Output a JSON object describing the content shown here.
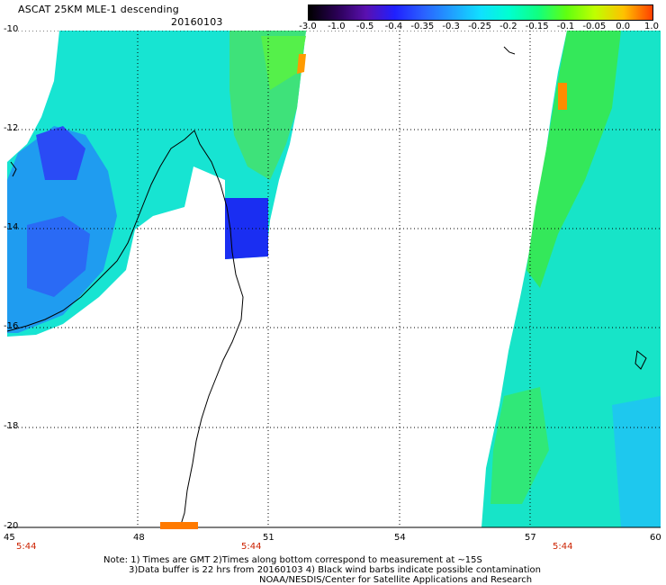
{
  "title": "ASCAT 25KM MLE-1 descending",
  "date": "20160103",
  "colorbar": {
    "labels": [
      "-3.0",
      "-1.0",
      "-0.5",
      "-0.4",
      "-0.35",
      "-0.3",
      "-0.25",
      "-0.2",
      "-0.15",
      "-0.1",
      "-0.05",
      "0.0",
      "1.0"
    ],
    "colors": [
      "#000000",
      "#2a0055",
      "#5a10b0",
      "#2020ff",
      "#2a60ff",
      "#20a0ff",
      "#10e0ff",
      "#00ffd0",
      "#10ff80",
      "#60ff10",
      "#c0ff00",
      "#ffc000",
      "#ff4000"
    ]
  },
  "lat_ticks": [
    "-10",
    "-12",
    "-14",
    "-16",
    "-18",
    "-20"
  ],
  "lon_ticks": [
    "45",
    "48",
    "51",
    "54",
    "57",
    "60"
  ],
  "time_labels": [
    "5:44",
    "5:44",
    "5:44"
  ],
  "notes": [
    "Note: 1) Times are GMT 2)Times along bottom correspond to measurement at ~15S",
    "3)Data buffer is 22 hrs from 20160103 4) Black wind barbs indicate possible contamination",
    "NOAA/NESDIS/Center for Satellite Applications and Research"
  ]
}
